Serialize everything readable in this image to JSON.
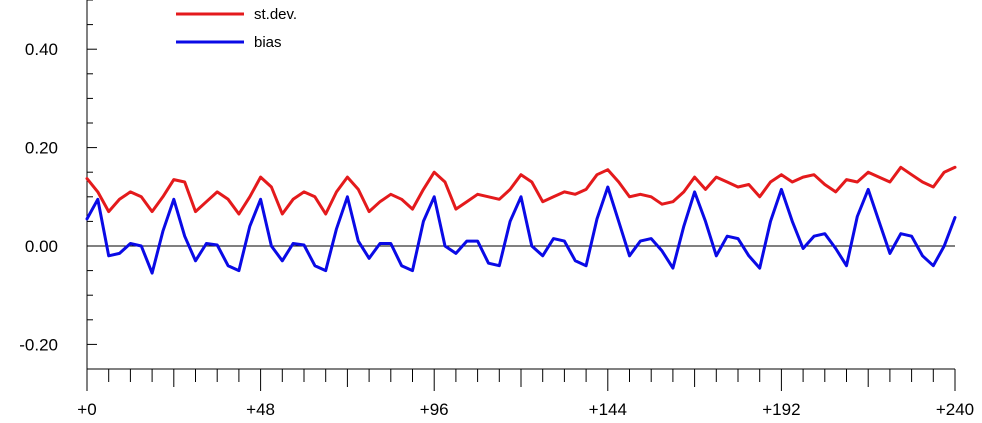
{
  "chart_data": {
    "type": "line",
    "title": "",
    "xlabel": "",
    "ylabel": "",
    "xlim": [
      0,
      240
    ],
    "ylim": [
      -0.25,
      0.5
    ],
    "x_ticks": [
      {
        "value": 0,
        "label": "+0"
      },
      {
        "value": 48,
        "label": "+48"
      },
      {
        "value": 96,
        "label": "+96"
      },
      {
        "value": 144,
        "label": "+144"
      },
      {
        "value": 192,
        "label": "+192"
      },
      {
        "value": 240,
        "label": "+240"
      }
    ],
    "y_ticks": [
      {
        "value": 0.4,
        "label": "0.40"
      },
      {
        "value": 0.2,
        "label": "0.20"
      },
      {
        "value": 0.0,
        "label": "0.00"
      },
      {
        "value": -0.2,
        "label": "-0.20"
      }
    ],
    "zero_line": true,
    "grid": false,
    "legend_position": "top-left",
    "series": [
      {
        "name": "st.dev.",
        "color": "#e41a1c",
        "x": [
          0,
          3,
          6,
          9,
          12,
          15,
          18,
          21,
          24,
          27,
          30,
          33,
          36,
          39,
          42,
          45,
          48,
          51,
          54,
          57,
          60,
          63,
          66,
          69,
          72,
          75,
          78,
          81,
          84,
          87,
          90,
          93,
          96,
          99,
          102,
          105,
          108,
          111,
          114,
          117,
          120,
          123,
          126,
          129,
          132,
          135,
          138,
          141,
          144,
          147,
          150,
          153,
          156,
          159,
          162,
          165,
          168,
          171,
          174,
          177,
          180,
          183,
          186,
          189,
          192,
          195,
          198,
          201,
          204,
          207,
          210,
          213,
          216,
          219,
          222,
          225,
          228,
          231,
          234,
          237,
          240
        ],
        "values": [
          0.137,
          0.11,
          0.07,
          0.095,
          0.11,
          0.1,
          0.07,
          0.1,
          0.135,
          0.13,
          0.07,
          0.09,
          0.11,
          0.095,
          0.065,
          0.1,
          0.14,
          0.12,
          0.065,
          0.095,
          0.11,
          0.1,
          0.065,
          0.11,
          0.14,
          0.115,
          0.07,
          0.09,
          0.105,
          0.095,
          0.075,
          0.115,
          0.15,
          0.13,
          0.075,
          0.09,
          0.105,
          0.1,
          0.095,
          0.115,
          0.145,
          0.13,
          0.09,
          0.1,
          0.11,
          0.105,
          0.115,
          0.145,
          0.155,
          0.13,
          0.1,
          0.105,
          0.1,
          0.085,
          0.09,
          0.11,
          0.14,
          0.115,
          0.14,
          0.13,
          0.12,
          0.125,
          0.1,
          0.13,
          0.145,
          0.13,
          0.14,
          0.145,
          0.125,
          0.11,
          0.135,
          0.13,
          0.15,
          0.14,
          0.13,
          0.16,
          0.145,
          0.13,
          0.12,
          0.15,
          0.16
        ]
      },
      {
        "name": "bias",
        "color": "#0a0ae6",
        "x": [
          0,
          3,
          6,
          9,
          12,
          15,
          18,
          21,
          24,
          27,
          30,
          33,
          36,
          39,
          42,
          45,
          48,
          51,
          54,
          57,
          60,
          63,
          66,
          69,
          72,
          75,
          78,
          81,
          84,
          87,
          90,
          93,
          96,
          99,
          102,
          105,
          108,
          111,
          114,
          117,
          120,
          123,
          126,
          129,
          132,
          135,
          138,
          141,
          144,
          147,
          150,
          153,
          156,
          159,
          162,
          165,
          168,
          171,
          174,
          177,
          180,
          183,
          186,
          189,
          192,
          195,
          198,
          201,
          204,
          207,
          210,
          213,
          216,
          219,
          222,
          225,
          228,
          231,
          234,
          237,
          240
        ],
        "values": [
          0.055,
          0.095,
          -0.02,
          -0.015,
          0.005,
          0.0,
          -0.055,
          0.03,
          0.095,
          0.02,
          -0.03,
          0.005,
          0.002,
          -0.04,
          -0.05,
          0.04,
          0.095,
          0.0,
          -0.03,
          0.005,
          0.002,
          -0.04,
          -0.05,
          0.035,
          0.1,
          0.01,
          -0.025,
          0.005,
          0.005,
          -0.04,
          -0.05,
          0.05,
          0.1,
          0.0,
          -0.015,
          0.01,
          0.01,
          -0.035,
          -0.04,
          0.05,
          0.1,
          0.0,
          -0.02,
          0.015,
          0.01,
          -0.03,
          -0.04,
          0.055,
          0.12,
          0.05,
          -0.02,
          0.01,
          0.015,
          -0.01,
          -0.045,
          0.04,
          0.11,
          0.05,
          -0.02,
          0.02,
          0.015,
          -0.02,
          -0.045,
          0.05,
          0.115,
          0.05,
          -0.005,
          0.02,
          0.025,
          -0.005,
          -0.04,
          0.06,
          0.115,
          0.05,
          -0.015,
          0.025,
          0.02,
          -0.02,
          -0.04,
          0.0,
          0.058
        ]
      }
    ]
  }
}
